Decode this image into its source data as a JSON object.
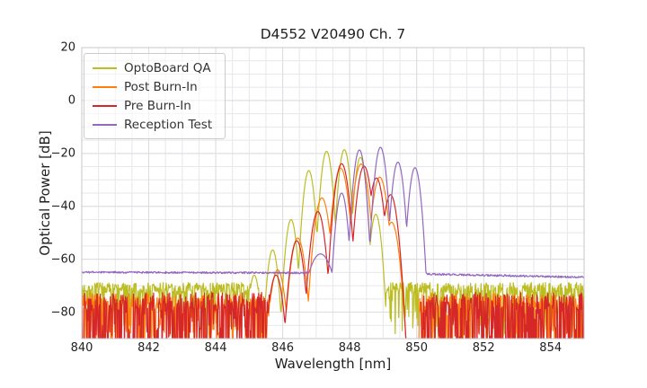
{
  "chart_data": {
    "type": "line",
    "title": "D4552 V20490 Ch. 7",
    "xlabel": "Wavelength [nm]",
    "ylabel": "Optical Power [dB]",
    "xlim": [
      840,
      855
    ],
    "ylim": [
      -90,
      20
    ],
    "axes_rect": [
      91,
      53,
      559,
      324
    ],
    "xticks": [
      {
        "label": "840",
        "value": 840
      },
      {
        "label": "842",
        "value": 842
      },
      {
        "label": "844",
        "value": 844
      },
      {
        "label": "846",
        "value": 846
      },
      {
        "label": "848",
        "value": 848
      },
      {
        "label": "850",
        "value": 850
      },
      {
        "label": "852",
        "value": 852
      },
      {
        "label": "854",
        "value": 854
      }
    ],
    "yticks": [
      {
        "label": "20",
        "value": 20
      },
      {
        "label": "0",
        "value": 0
      },
      {
        "label": "−20",
        "value": -20
      },
      {
        "label": "−40",
        "value": -40
      },
      {
        "label": "−60",
        "value": -60
      },
      {
        "label": "−80",
        "value": -80
      }
    ],
    "grid": {
      "minor_x_step": 0.5,
      "minor_y_step": 5,
      "minor_color": "#e7e7ec",
      "major_color": "#dcdce1"
    },
    "spine_color": "#c7c7cb",
    "legend_position": "upper-left",
    "noise_seed": 7,
    "series": [
      {
        "name": "OptoBoard QA",
        "color": "#bcbd22",
        "k": 400,
        "peaks": [
          [
            845.15,
            -66
          ],
          [
            845.7,
            -56.5
          ],
          [
            846.25,
            -45
          ],
          [
            846.78,
            -26.5
          ],
          [
            847.31,
            -19.2
          ],
          [
            847.84,
            -18.6
          ],
          [
            848.32,
            -21.5
          ],
          [
            848.78,
            -43
          ]
        ],
        "noise": {
          "segments": [
            [
              840,
              845.28
            ],
            [
              848.98,
              855
            ]
          ],
          "mean": -71,
          "jitter": 2.2,
          "spike_prob": 0.28,
          "spike_depth": 16
        }
      },
      {
        "name": "Post Burn-In",
        "color": "#ff7f0e",
        "k": 240,
        "peaks": [
          [
            845.85,
            -64
          ],
          [
            846.45,
            -52
          ],
          [
            847.17,
            -36.8
          ],
          [
            847.73,
            -25.6
          ],
          [
            848.34,
            -24.0
          ],
          [
            848.9,
            -29.0
          ],
          [
            849.25,
            -46
          ]
        ],
        "noise": {
          "segments": [
            [
              840,
              845.78
            ],
            [
              850.05,
              855
            ]
          ],
          "mean": -76,
          "jitter": 3.0,
          "spike_prob": 0.42,
          "spike_depth": 20
        }
      },
      {
        "name": "Pre Burn-In",
        "color": "#d62728",
        "k": 260,
        "peaks": [
          [
            845.8,
            -66
          ],
          [
            846.42,
            -53
          ],
          [
            847.05,
            -42
          ],
          [
            847.76,
            -23.9
          ],
          [
            848.43,
            -24.8
          ],
          [
            848.8,
            -29.3
          ],
          [
            849.22,
            -35.6
          ]
        ],
        "noise": {
          "segments": [
            [
              840,
              845.82
            ],
            [
              850.1,
              855
            ]
          ],
          "mean": -76,
          "jitter": 3.5,
          "spike_prob": 0.5,
          "spike_depth": 26
        }
      },
      {
        "name": "Reception Test",
        "color": "#9467bd",
        "k": 370,
        "peaks": [
          [
            847.13,
            -58,
            60
          ],
          [
            847.76,
            -35
          ],
          [
            848.29,
            -18.7
          ],
          [
            848.92,
            -17.7
          ],
          [
            849.44,
            -23.3
          ],
          [
            849.95,
            -25.4
          ]
        ],
        "baseline": {
          "points": [
            [
              840,
              -64.9
            ],
            [
              847,
              -65.2
            ],
            [
              850.3,
              -65.6
            ],
            [
              853,
              -66.3
            ],
            [
              855,
              -66.8
            ]
          ],
          "ripple": 0.35
        }
      }
    ]
  }
}
